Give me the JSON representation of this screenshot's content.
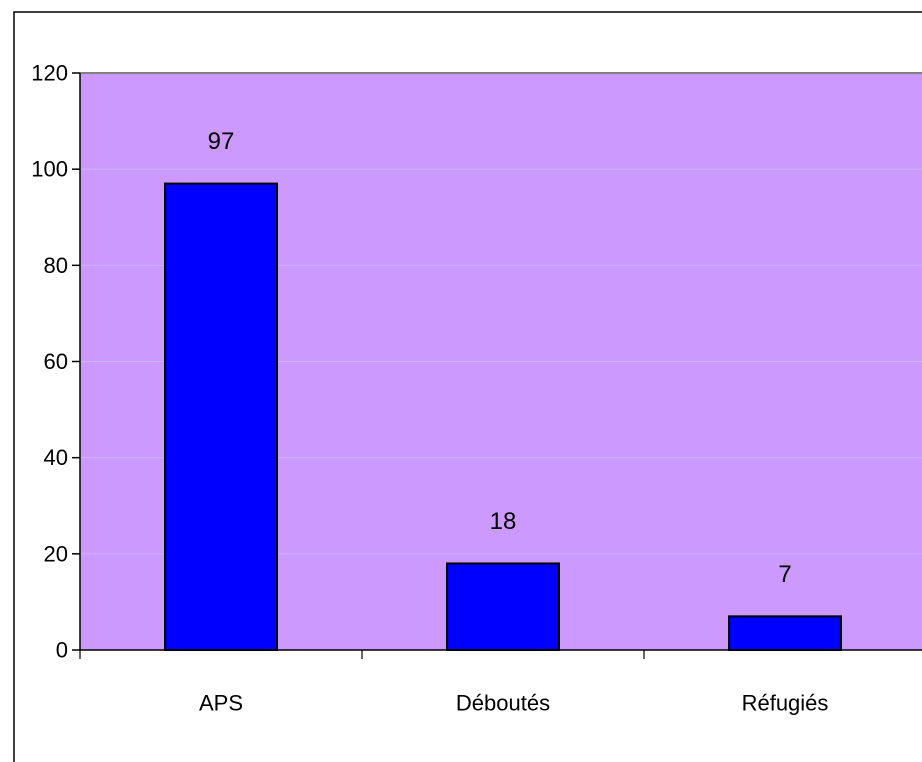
{
  "chart_data": {
    "type": "bar",
    "categories": [
      "APS",
      "Déboutés",
      "Réfugiés"
    ],
    "values": [
      97,
      18,
      7
    ],
    "data_labels": [
      "97",
      "18",
      "7"
    ],
    "title": "",
    "xlabel": "",
    "ylabel": "",
    "ylim": [
      0,
      120
    ],
    "yticks": [
      0,
      20,
      40,
      60,
      80,
      100,
      120
    ],
    "ytick_labels": [
      "0",
      "20",
      "40",
      "60",
      "80",
      "100",
      "120"
    ],
    "grid": true,
    "legend": "none",
    "colors": {
      "plot_background": "#cc99ff",
      "bar_fill": "#0000ff",
      "bar_edge": "#000000",
      "gridline": "#c8b8ff",
      "axis": "#000000"
    }
  }
}
